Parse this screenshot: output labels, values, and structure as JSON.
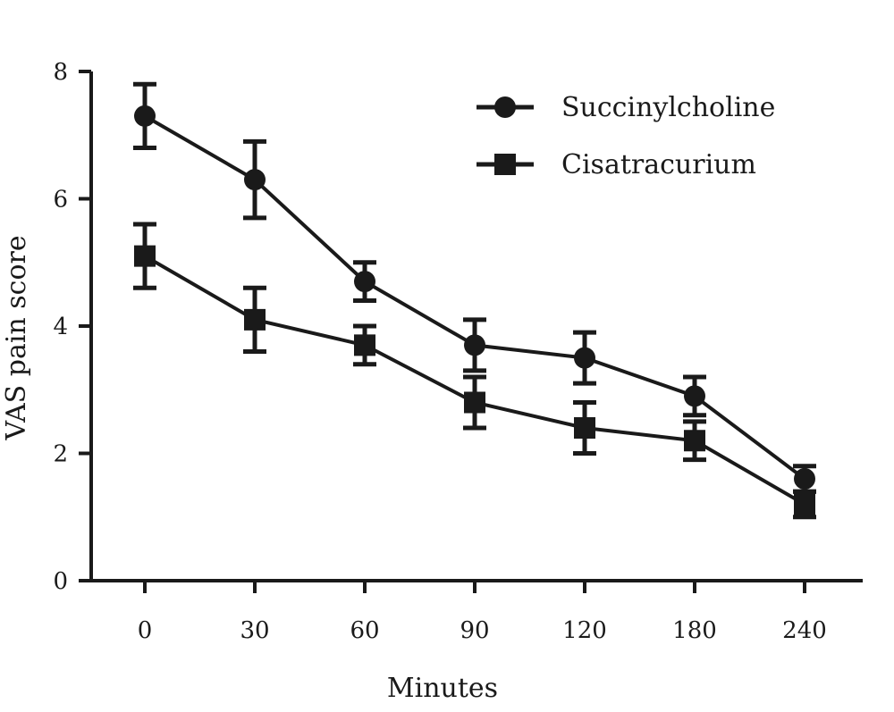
{
  "chart_data": {
    "type": "line",
    "title": "",
    "xlabel": "Minutes",
    "ylabel": "VAS pain score",
    "categories": [
      "0",
      "30",
      "60",
      "90",
      "120",
      "180",
      "240"
    ],
    "ylim": [
      0,
      8
    ],
    "yticks": [
      "0",
      "2",
      "4",
      "6",
      "8"
    ],
    "grid": false,
    "legend_position": "top-right",
    "series": [
      {
        "name": "Succinylcholine",
        "marker": "circle",
        "color": "#1a1a1a",
        "values": [
          7.3,
          6.3,
          4.7,
          3.7,
          3.5,
          2.9,
          1.6
        ],
        "error": [
          0.5,
          0.6,
          0.3,
          0.4,
          0.4,
          0.3,
          0.2
        ]
      },
      {
        "name": "Cisatracurium",
        "marker": "square",
        "color": "#1a1a1a",
        "values": [
          5.1,
          4.1,
          3.7,
          2.8,
          2.4,
          2.2,
          1.2
        ],
        "error": [
          0.5,
          0.5,
          0.3,
          0.4,
          0.4,
          0.3,
          0.2
        ]
      }
    ]
  }
}
